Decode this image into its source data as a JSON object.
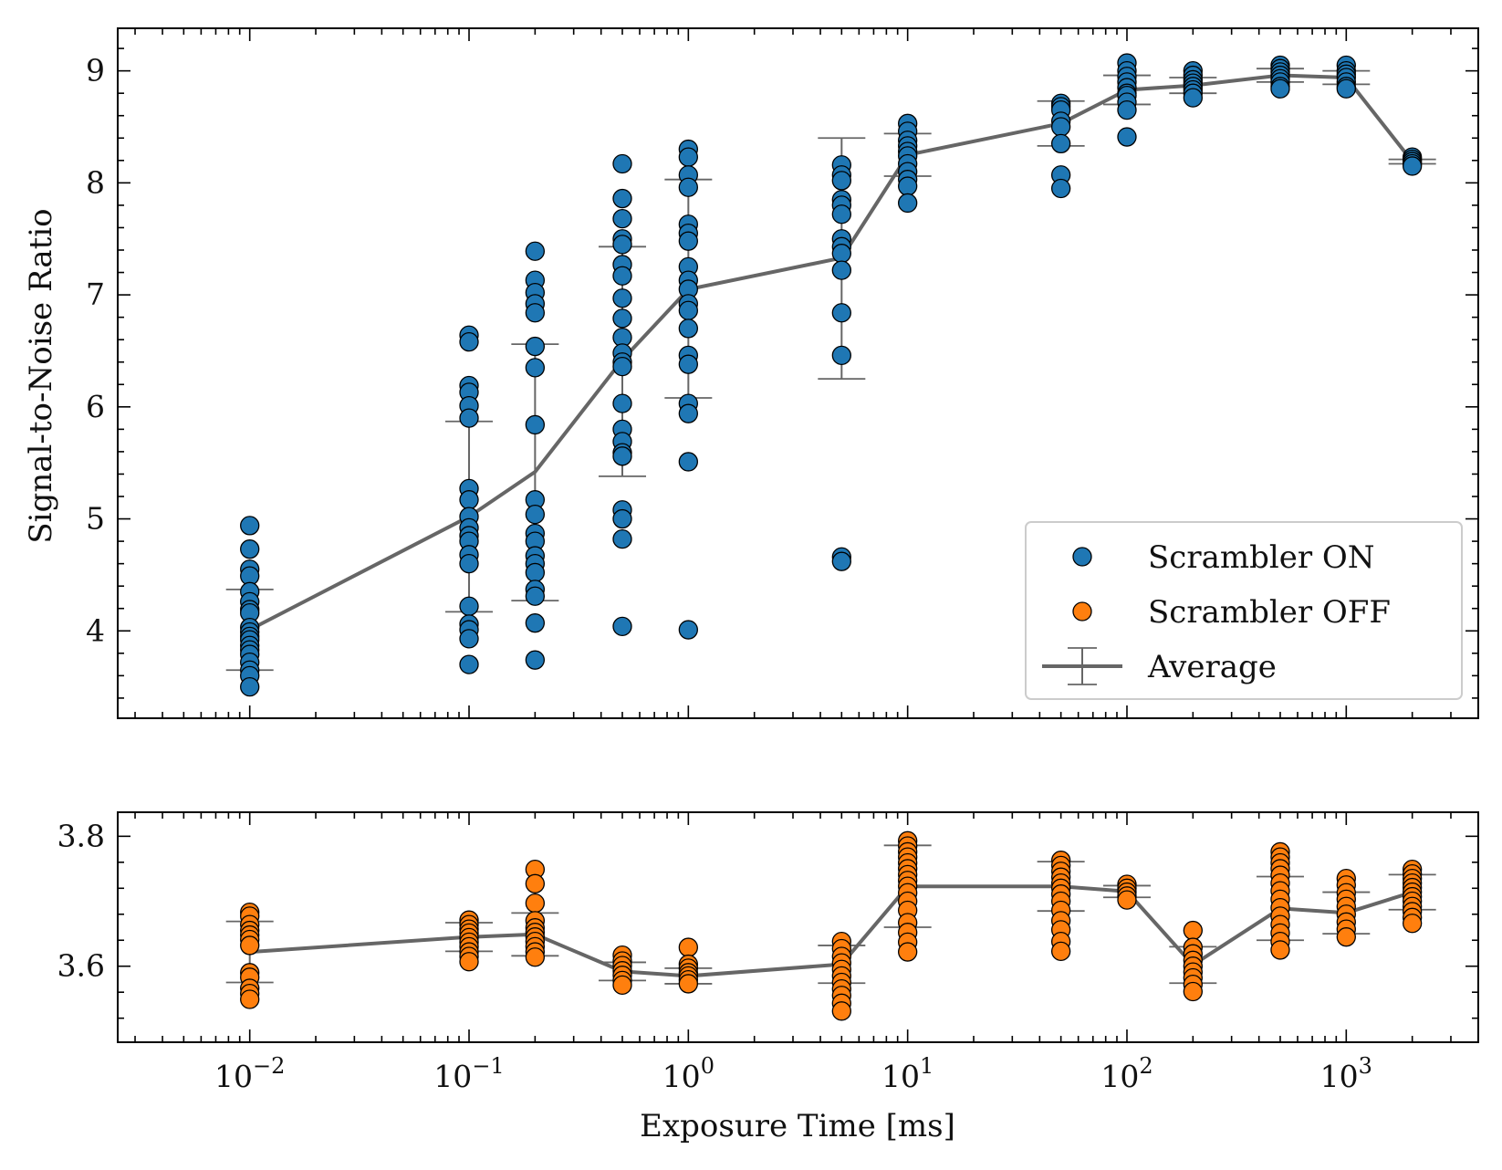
{
  "chart_data": [
    {
      "type": "scatter",
      "panel": "top",
      "xlabel": "",
      "ylabel": "Signal-to-Noise Ratio",
      "xscale": "log",
      "xlim": [
        0.0025,
        4000
      ],
      "ylim": [
        3.22,
        9.38
      ],
      "yticks": [
        {
          "value": 4,
          "label": "4"
        },
        {
          "value": 5,
          "label": "5"
        },
        {
          "value": 6,
          "label": "6"
        },
        {
          "value": 7,
          "label": "7"
        },
        {
          "value": 8,
          "label": "8"
        },
        {
          "value": 9,
          "label": "9"
        }
      ],
      "grid": false,
      "legend_position": "lower right",
      "legend": [
        {
          "label": "Scrambler ON",
          "kind": "marker",
          "color": "#1f77b4"
        },
        {
          "label": "Scrambler OFF",
          "kind": "marker",
          "color": "#ff7f0e"
        },
        {
          "label": "Average",
          "kind": "errorbar-line",
          "color": "#666666"
        }
      ],
      "series": [
        {
          "name": "Scrambler ON",
          "color": "#1f77b4",
          "points": [
            {
              "x": 0.01,
              "y": [
                4.94,
                4.73,
                4.55,
                4.49,
                4.35,
                4.26,
                4.19,
                4.16,
                4.03,
                3.99,
                3.95,
                3.92,
                3.87,
                3.83,
                3.79,
                3.72,
                3.65,
                3.6,
                3.5
              ]
            },
            {
              "x": 0.1,
              "y": [
                6.64,
                6.58,
                6.19,
                6.13,
                6.01,
                5.9,
                5.27,
                5.17,
                5.02,
                4.92,
                4.85,
                4.8,
                4.68,
                4.6,
                4.22,
                4.06,
                4.01,
                3.93,
                3.7
              ]
            },
            {
              "x": 0.2,
              "y": [
                7.39,
                7.13,
                7.02,
                6.92,
                6.84,
                6.54,
                6.35,
                5.84,
                5.17,
                5.04,
                4.87,
                4.8,
                4.67,
                4.6,
                4.52,
                4.37,
                4.31,
                4.07,
                3.74
              ]
            },
            {
              "x": 0.5,
              "y": [
                8.17,
                7.86,
                7.68,
                7.5,
                7.45,
                7.27,
                7.17,
                6.97,
                6.79,
                6.62,
                6.48,
                6.4,
                6.36,
                6.03,
                5.8,
                5.69,
                5.59,
                5.56,
                5.08,
                5.0,
                4.82,
                4.04
              ]
            },
            {
              "x": 1,
              "y": [
                8.3,
                8.23,
                8.07,
                7.96,
                7.63,
                7.55,
                7.48,
                7.25,
                7.13,
                7.05,
                6.92,
                6.86,
                6.7,
                6.46,
                6.38,
                6.03,
                5.94,
                5.51,
                4.01
              ]
            },
            {
              "x": 5,
              "y": [
                8.16,
                8.07,
                8.02,
                7.85,
                7.8,
                7.72,
                7.5,
                7.43,
                7.37,
                7.22,
                6.84,
                6.46,
                4.66,
                4.62
              ]
            },
            {
              "x": 10,
              "y": [
                8.53,
                8.46,
                8.38,
                8.33,
                8.28,
                8.24,
                8.17,
                8.1,
                8.03,
                7.97,
                7.82
              ]
            },
            {
              "x": 50,
              "y": [
                8.71,
                8.68,
                8.65,
                8.55,
                8.5,
                8.35,
                8.07,
                7.95
              ]
            },
            {
              "x": 100,
              "y": [
                9.07,
                9.0,
                8.95,
                8.9,
                8.85,
                8.8,
                8.78,
                8.72,
                8.65,
                8.41
              ]
            },
            {
              "x": 200,
              "y": [
                9.0,
                8.96,
                8.92,
                8.89,
                8.86,
                8.83,
                8.8,
                8.76
              ]
            },
            {
              "x": 500,
              "y": [
                9.05,
                9.02,
                8.99,
                8.96,
                8.93,
                8.9,
                8.86,
                8.84
              ]
            },
            {
              "x": 1000,
              "y": [
                9.05,
                9.0,
                8.97,
                8.94,
                8.9,
                8.86,
                8.84
              ]
            },
            {
              "x": 2000,
              "y": [
                8.23,
                8.21,
                8.19,
                8.17,
                8.15
              ]
            }
          ]
        },
        {
          "name": "Average",
          "color": "#666666",
          "points": [
            {
              "x": 0.01,
              "y": 4.01,
              "yerr_low": 3.65,
              "yerr_high": 4.37
            },
            {
              "x": 0.1,
              "y": 5.02,
              "yerr_low": 4.17,
              "yerr_high": 5.87
            },
            {
              "x": 0.2,
              "y": 5.42,
              "yerr_low": 4.27,
              "yerr_high": 6.56
            },
            {
              "x": 0.5,
              "y": 6.42,
              "yerr_low": 5.38,
              "yerr_high": 7.43
            },
            {
              "x": 1,
              "y": 7.05,
              "yerr_low": 6.08,
              "yerr_high": 8.03
            },
            {
              "x": 5,
              "y": 7.33,
              "yerr_low": 6.25,
              "yerr_high": 8.4
            },
            {
              "x": 10,
              "y": 8.25,
              "yerr_low": 8.06,
              "yerr_high": 8.44
            },
            {
              "x": 50,
              "y": 8.53,
              "yerr_low": 8.33,
              "yerr_high": 8.73
            },
            {
              "x": 100,
              "y": 8.83,
              "yerr_low": 8.7,
              "yerr_high": 8.96
            },
            {
              "x": 200,
              "y": 8.87,
              "yerr_low": 8.8,
              "yerr_high": 8.94
            },
            {
              "x": 500,
              "y": 8.96,
              "yerr_low": 8.9,
              "yerr_high": 9.02
            },
            {
              "x": 1000,
              "y": 8.94,
              "yerr_low": 8.88,
              "yerr_high": 9.0
            },
            {
              "x": 2000,
              "y": 8.19,
              "yerr_low": 8.17,
              "yerr_high": 8.21
            }
          ]
        }
      ]
    },
    {
      "type": "scatter",
      "panel": "bottom",
      "xlabel": "Exposure Time [ms]",
      "ylabel": "",
      "xscale": "log",
      "xlim": [
        0.0025,
        4000
      ],
      "ylim": [
        3.483,
        3.837
      ],
      "xticks": [
        {
          "value": 0.01,
          "base": "10",
          "exp": "−2"
        },
        {
          "value": 0.1,
          "base": "10",
          "exp": "−1"
        },
        {
          "value": 1,
          "base": "10",
          "exp": "0"
        },
        {
          "value": 10,
          "base": "10",
          "exp": "1"
        },
        {
          "value": 100,
          "base": "10",
          "exp": "2"
        },
        {
          "value": 1000,
          "base": "10",
          "exp": "3"
        }
      ],
      "yticks": [
        {
          "value": 3.6,
          "label": "3.6"
        },
        {
          "value": 3.8,
          "label": "3.8"
        }
      ],
      "grid": false,
      "series": [
        {
          "name": "Scrambler OFF",
          "color": "#ff7f0e",
          "points": [
            {
              "x": 0.01,
              "y": [
                3.683,
                3.677,
                3.664,
                3.655,
                3.648,
                3.641,
                3.632,
                3.59,
                3.583,
                3.566,
                3.558,
                3.549
              ]
            },
            {
              "x": 0.1,
              "y": [
                3.671,
                3.664,
                3.657,
                3.651,
                3.644,
                3.637,
                3.63,
                3.622,
                3.615,
                3.607
              ]
            },
            {
              "x": 0.2,
              "y": [
                3.749,
                3.727,
                3.697,
                3.67,
                3.659,
                3.652,
                3.645,
                3.638,
                3.63,
                3.622,
                3.614
              ]
            },
            {
              "x": 0.5,
              "y": [
                3.617,
                3.608,
                3.601,
                3.593,
                3.586,
                3.578,
                3.571
              ]
            },
            {
              "x": 1,
              "y": [
                3.629,
                3.603,
                3.597,
                3.59,
                3.585,
                3.579,
                3.573
              ]
            },
            {
              "x": 5,
              "y": [
                3.638,
                3.627,
                3.615,
                3.605,
                3.595,
                3.585,
                3.575,
                3.565,
                3.555,
                3.543,
                3.531
              ]
            },
            {
              "x": 10,
              "y": [
                3.793,
                3.785,
                3.776,
                3.768,
                3.759,
                3.75,
                3.741,
                3.732,
                3.723,
                3.713,
                3.7,
                3.686,
                3.667,
                3.652,
                3.637,
                3.622
              ]
            },
            {
              "x": 50,
              "y": [
                3.763,
                3.755,
                3.746,
                3.737,
                3.728,
                3.72,
                3.711,
                3.7,
                3.686,
                3.67,
                3.656,
                3.638,
                3.623
              ]
            },
            {
              "x": 100,
              "y": [
                3.726,
                3.72,
                3.714,
                3.708,
                3.702
              ]
            },
            {
              "x": 200,
              "y": [
                3.655,
                3.629,
                3.619,
                3.609,
                3.6,
                3.591,
                3.582,
                3.572,
                3.561
              ]
            },
            {
              "x": 500,
              "y": [
                3.776,
                3.768,
                3.759,
                3.75,
                3.74,
                3.728,
                3.716,
                3.703,
                3.69,
                3.677,
                3.664,
                3.651,
                3.638,
                3.625
              ]
            },
            {
              "x": 1000,
              "y": [
                3.735,
                3.725,
                3.713,
                3.703,
                3.692,
                3.68,
                3.668,
                3.657,
                3.645
              ]
            },
            {
              "x": 2000,
              "y": [
                3.749,
                3.742,
                3.735,
                3.728,
                3.721,
                3.714,
                3.707,
                3.7,
                3.692,
                3.684,
                3.675,
                3.666
              ]
            }
          ]
        },
        {
          "name": "Average",
          "color": "#666666",
          "points": [
            {
              "x": 0.01,
              "y": 3.622,
              "yerr_low": 3.575,
              "yerr_high": 3.669
            },
            {
              "x": 0.1,
              "y": 3.645,
              "yerr_low": 3.623,
              "yerr_high": 3.667
            },
            {
              "x": 0.2,
              "y": 3.649,
              "yerr_low": 3.616,
              "yerr_high": 3.682
            },
            {
              "x": 0.5,
              "y": 3.592,
              "yerr_low": 3.578,
              "yerr_high": 3.606
            },
            {
              "x": 1,
              "y": 3.585,
              "yerr_low": 3.573,
              "yerr_high": 3.597
            },
            {
              "x": 5,
              "y": 3.603,
              "yerr_low": 3.574,
              "yerr_high": 3.632
            },
            {
              "x": 10,
              "y": 3.723,
              "yerr_low": 3.66,
              "yerr_high": 3.786
            },
            {
              "x": 50,
              "y": 3.723,
              "yerr_low": 3.685,
              "yerr_high": 3.761
            },
            {
              "x": 100,
              "y": 3.715,
              "yerr_low": 3.706,
              "yerr_high": 3.724
            },
            {
              "x": 200,
              "y": 3.602,
              "yerr_low": 3.574,
              "yerr_high": 3.63
            },
            {
              "x": 500,
              "y": 3.689,
              "yerr_low": 3.64,
              "yerr_high": 3.738
            },
            {
              "x": 1000,
              "y": 3.682,
              "yerr_low": 3.65,
              "yerr_high": 3.714
            },
            {
              "x": 2000,
              "y": 3.714,
              "yerr_low": 3.687,
              "yerr_high": 3.741
            }
          ]
        }
      ]
    }
  ]
}
